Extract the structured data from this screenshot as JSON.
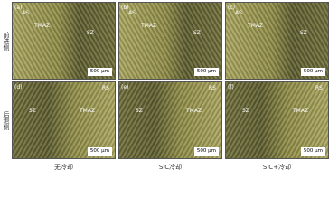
{
  "row_labels": [
    "前进侧",
    "后退侧"
  ],
  "column_labels": [
    "无冷却",
    "SiC冷却",
    "SiC+冷却"
  ],
  "panels": [
    {
      "tag": "(a)",
      "side": "AS",
      "zones": [
        "TMAZ",
        "SZ"
      ],
      "scale": "500 μm"
    },
    {
      "tag": "(b)",
      "side": "AS",
      "zones": [
        "TMAZ",
        "SZ"
      ],
      "scale": "500 μm"
    },
    {
      "tag": "(c)",
      "side": "AS",
      "zones": [
        "TMAZ",
        "SZ"
      ],
      "scale": "500 μm"
    },
    {
      "tag": "(d)",
      "side": "RS",
      "zones": [
        "SZ",
        "TMAZ"
      ],
      "scale": "500 μm"
    },
    {
      "tag": "(e)",
      "side": "RS",
      "zones": [
        "SZ",
        "TMAZ"
      ],
      "scale": "500 μm"
    },
    {
      "tag": "(f)",
      "side": "RS",
      "zones": [
        "SZ",
        "TMAZ"
      ],
      "scale": "500 μm"
    }
  ]
}
